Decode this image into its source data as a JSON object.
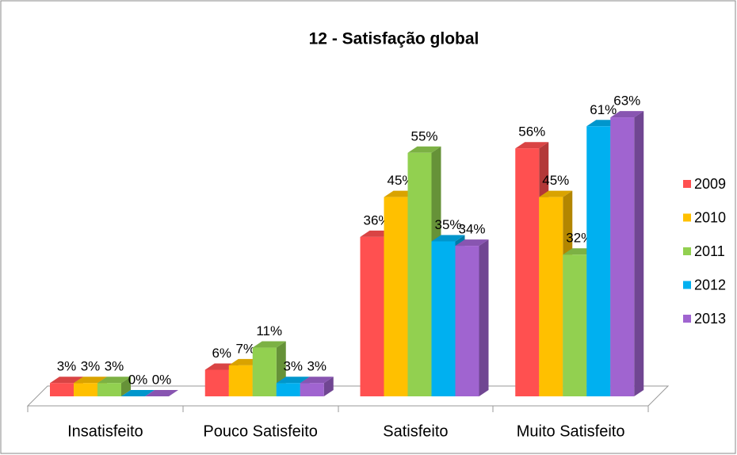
{
  "chart_data": {
    "type": "bar3d",
    "title": "12 - Satisfação global",
    "categories": [
      "Insatisfeito",
      "Pouco Satisfeito",
      "Satisfeito",
      "Muito Satisfeito"
    ],
    "ylim": [
      0,
      70
    ],
    "legend": "right",
    "series": [
      {
        "name": "2009",
        "color": "#ff5050",
        "values": [
          3,
          6,
          36,
          56
        ],
        "value_labels": [
          "3%",
          "6%",
          "36%",
          "56%"
        ]
      },
      {
        "name": "2010",
        "color": "#ffc000",
        "values": [
          3,
          7,
          45,
          45
        ],
        "value_labels": [
          "3%",
          "7%",
          "45%",
          "45%"
        ]
      },
      {
        "name": "2011",
        "color": "#92d050",
        "values": [
          3,
          11,
          55,
          32
        ],
        "value_labels": [
          "3%",
          "11%",
          "55%",
          "32%"
        ]
      },
      {
        "name": "2012",
        "color": "#00b0f0",
        "values": [
          0,
          3,
          35,
          61
        ],
        "value_labels": [
          "0%",
          "3%",
          "35%",
          "61%"
        ]
      },
      {
        "name": "2013",
        "color": "#a064d0",
        "values": [
          0,
          3,
          34,
          63
        ],
        "value_labels": [
          "0%",
          "3%",
          "34%",
          "63%"
        ]
      }
    ]
  }
}
